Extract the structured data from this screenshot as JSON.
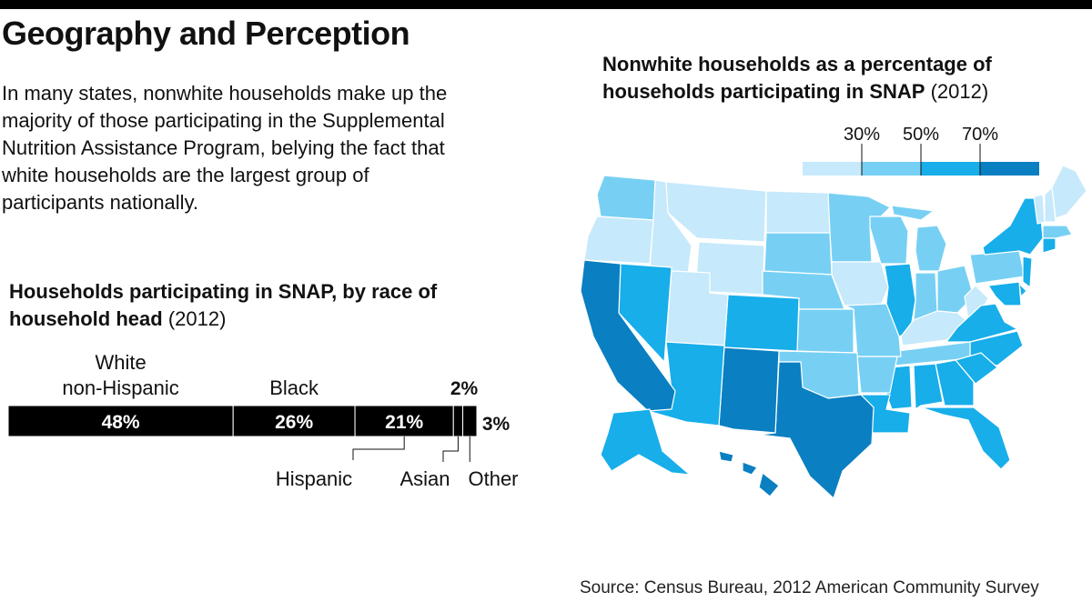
{
  "header": {
    "title": "Geography and Perception",
    "intro": "In many states, nonwhite households make up the majority of those participating in the Supplemental Nutrition Assistance Program, belying the fact that white households are the largest group of participants nationally."
  },
  "chart_data": [
    {
      "type": "bar",
      "title": "Households participating in SNAP, by race of household head",
      "title_year": "(2012)",
      "orientation": "horizontal-stacked",
      "series": [
        {
          "name": "White non-Hispanic",
          "label_lines": [
            "White",
            "non-Hispanic"
          ],
          "value": 48,
          "label": "48%"
        },
        {
          "name": "Black",
          "label_lines": [
            "Black"
          ],
          "value": 26,
          "label": "26%"
        },
        {
          "name": "Hispanic",
          "label_lines": [
            "Hispanic"
          ],
          "value": 21,
          "label": "21%"
        },
        {
          "name": "Asian",
          "label_lines": [
            "Asian"
          ],
          "value": 2,
          "label": "2%"
        },
        {
          "name": "Other",
          "label_lines": [
            "Other"
          ],
          "value": 3,
          "label": "3%"
        }
      ],
      "bar_color": "#000000"
    },
    {
      "type": "heatmap",
      "subtype": "choropleth",
      "title": "Nonwhite households as a percentage of households participating in SNAP",
      "title_year": "(2012)",
      "legend": {
        "breaks": [
          30,
          50,
          70
        ],
        "break_labels": [
          "30%",
          "50%",
          "70%"
        ],
        "colors": [
          "#c6e9fb",
          "#77d0f4",
          "#17aeea",
          "#0a7fc2"
        ],
        "placement": "top-right"
      },
      "regions": [
        {
          "id": "WA",
          "bin": 1
        },
        {
          "id": "OR",
          "bin": 0
        },
        {
          "id": "ID",
          "bin": 0
        },
        {
          "id": "MT",
          "bin": 0
        },
        {
          "id": "WY",
          "bin": 0
        },
        {
          "id": "ND",
          "bin": 0
        },
        {
          "id": "SD",
          "bin": 1
        },
        {
          "id": "NE",
          "bin": 1
        },
        {
          "id": "MN",
          "bin": 1
        },
        {
          "id": "IA",
          "bin": 0
        },
        {
          "id": "WI",
          "bin": 1
        },
        {
          "id": "MI",
          "bin": 1
        },
        {
          "id": "IL",
          "bin": 2
        },
        {
          "id": "IN",
          "bin": 1
        },
        {
          "id": "OH",
          "bin": 1
        },
        {
          "id": "PA",
          "bin": 1
        },
        {
          "id": "NY",
          "bin": 2
        },
        {
          "id": "VT",
          "bin": 0
        },
        {
          "id": "NH",
          "bin": 0
        },
        {
          "id": "ME",
          "bin": 0
        },
        {
          "id": "MA",
          "bin": 1
        },
        {
          "id": "CT",
          "bin": 2
        },
        {
          "id": "NJ",
          "bin": 2
        },
        {
          "id": "DE",
          "bin": 2
        },
        {
          "id": "MD",
          "bin": 2
        },
        {
          "id": "WV",
          "bin": 0
        },
        {
          "id": "KY",
          "bin": 0
        },
        {
          "id": "VA",
          "bin": 2
        },
        {
          "id": "NC",
          "bin": 2
        },
        {
          "id": "TN",
          "bin": 1
        },
        {
          "id": "SC",
          "bin": 2
        },
        {
          "id": "GA",
          "bin": 2
        },
        {
          "id": "AL",
          "bin": 2
        },
        {
          "id": "MS",
          "bin": 2
        },
        {
          "id": "FL",
          "bin": 2
        },
        {
          "id": "LA",
          "bin": 2
        },
        {
          "id": "AR",
          "bin": 1
        },
        {
          "id": "MO",
          "bin": 1
        },
        {
          "id": "KS",
          "bin": 1
        },
        {
          "id": "OK",
          "bin": 1
        },
        {
          "id": "TX",
          "bin": 3
        },
        {
          "id": "NM",
          "bin": 3
        },
        {
          "id": "CO",
          "bin": 2
        },
        {
          "id": "UT",
          "bin": 0
        },
        {
          "id": "NV",
          "bin": 2
        },
        {
          "id": "AZ",
          "bin": 2
        },
        {
          "id": "CA",
          "bin": 3
        },
        {
          "id": "AK",
          "bin": 2
        },
        {
          "id": "HI",
          "bin": 3
        }
      ]
    }
  ],
  "footer": {
    "source": "Source: Census Bureau, 2012 American Community Survey"
  }
}
